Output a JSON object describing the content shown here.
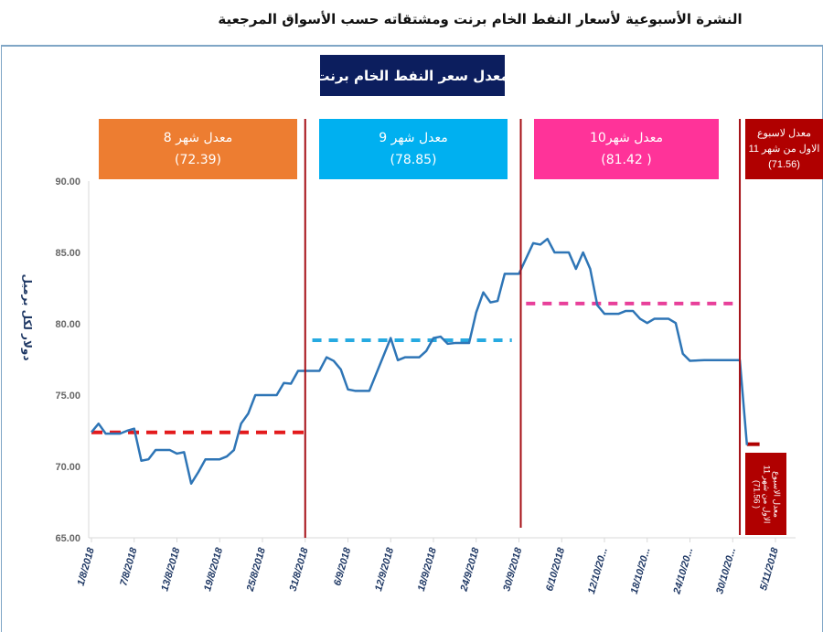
{
  "header": {
    "title": "النشرة الأسبوعية  لأسعار النفط الخام برنت ومشتقاته حسب الأسواق المرجعية"
  },
  "chart_data": {
    "type": "line",
    "title": "معدل سعر النفط الخام  برنت",
    "ylabel": "دولار لكل برميل",
    "xlabel": "",
    "ylim": [
      65,
      90
    ],
    "yticks": [
      "90.00",
      "85.00",
      "80.00",
      "75.00",
      "70.00",
      "65.00"
    ],
    "xlim": [
      "2018-08-01",
      "2018-11-05"
    ],
    "xticks": [
      "1/8/2018",
      "7/8/2018",
      "13/8/2018",
      "19/8/2018",
      "25/8/2018",
      "31/8/2018",
      "6/9/2018",
      "12/9/2018",
      "18/9/2018",
      "24/9/2018",
      "30/9/2018",
      "6/10/2018",
      "12/10/20...",
      "18/10/20...",
      "24/10/20...",
      "30/10/20...",
      "5/11/2018"
    ],
    "grid": false,
    "series": [
      {
        "color": "#2e75b6",
        "x": [
          "2018-08-01",
          "2018-08-02",
          "2018-08-03",
          "2018-08-05",
          "2018-08-06",
          "2018-08-07",
          "2018-08-08",
          "2018-08-09",
          "2018-08-10",
          "2018-08-12",
          "2018-08-13",
          "2018-08-14",
          "2018-08-15",
          "2018-08-16",
          "2018-08-17",
          "2018-08-19",
          "2018-08-20",
          "2018-08-21",
          "2018-08-22",
          "2018-08-23",
          "2018-08-24",
          "2018-08-27",
          "2018-08-28",
          "2018-08-29",
          "2018-08-30",
          "2018-09-02",
          "2018-09-03",
          "2018-09-04",
          "2018-09-05",
          "2018-09-06",
          "2018-09-07",
          "2018-09-09",
          "2018-09-12",
          "2018-09-13",
          "2018-09-14",
          "2018-09-15",
          "2018-09-16",
          "2018-09-17",
          "2018-09-18",
          "2018-09-19",
          "2018-09-20",
          "2018-09-21",
          "2018-09-23",
          "2018-09-24",
          "2018-09-25",
          "2018-09-26",
          "2018-09-27",
          "2018-09-28",
          "2018-09-30",
          "2018-10-02",
          "2018-10-03",
          "2018-10-04",
          "2018-10-05",
          "2018-10-07",
          "2018-10-08",
          "2018-10-09",
          "2018-10-10",
          "2018-10-11",
          "2018-10-12",
          "2018-10-14",
          "2018-10-15",
          "2018-10-16",
          "2018-10-17",
          "2018-10-18",
          "2018-10-19",
          "2018-10-21",
          "2018-10-22",
          "2018-10-23",
          "2018-10-24",
          "2018-10-26",
          "2018-10-31",
          "2018-11-01"
        ],
        "values": [
          72.4,
          73.0,
          72.3,
          72.3,
          72.5,
          72.65,
          70.4,
          70.5,
          71.15,
          71.15,
          70.9,
          71.0,
          68.8,
          69.6,
          70.5,
          70.5,
          70.7,
          71.15,
          73.0,
          73.7,
          75.0,
          75.0,
          75.85,
          75.8,
          76.7,
          76.7,
          77.65,
          77.4,
          76.8,
          75.4,
          75.3,
          75.3,
          79.0,
          77.45,
          77.65,
          77.65,
          77.65,
          78.1,
          79.0,
          79.1,
          78.6,
          78.65,
          78.65,
          80.8,
          82.2,
          81.5,
          81.6,
          83.5,
          83.5,
          85.65,
          85.55,
          85.95,
          85.0,
          85.0,
          83.85,
          85.0,
          83.85,
          81.3,
          80.7,
          80.7,
          80.9,
          80.9,
          80.35,
          80.05,
          80.35,
          80.35,
          80.05,
          77.9,
          77.4,
          77.45,
          77.45,
          71.5
        ]
      }
    ],
    "averages": [
      {
        "label": "معدل شهر 8",
        "value_text": "(72.39)",
        "value": 72.39,
        "from": "2018-08-01",
        "to": "2018-08-31",
        "color": "#e31a1c"
      },
      {
        "label": "معدل شهر 9",
        "value_text": "(78.85)",
        "value": 78.85,
        "from": "2018-09-01",
        "to": "2018-09-29",
        "color": "#27aae1"
      },
      {
        "label": "معدل شهر10",
        "value_text": "( 81.42)",
        "value": 81.42,
        "from": "2018-10-01",
        "to": "2018-10-31",
        "color": "#e8409a"
      },
      {
        "label": "معدل لاسبوع",
        "label2": "الاول من شهر 11",
        "value_text": "(71.56)",
        "value": 71.56,
        "from": "2018-11-01",
        "to": "2018-11-02",
        "color": "#b00000"
      }
    ],
    "dividers": [
      "2018-08-31",
      "2018-09-30",
      "2018-10-31"
    ],
    "bottom_note": {
      "line1": "معدل الاسبوع",
      "line2": "الاول من شهر 11",
      "line3": "( 71.56)"
    }
  }
}
